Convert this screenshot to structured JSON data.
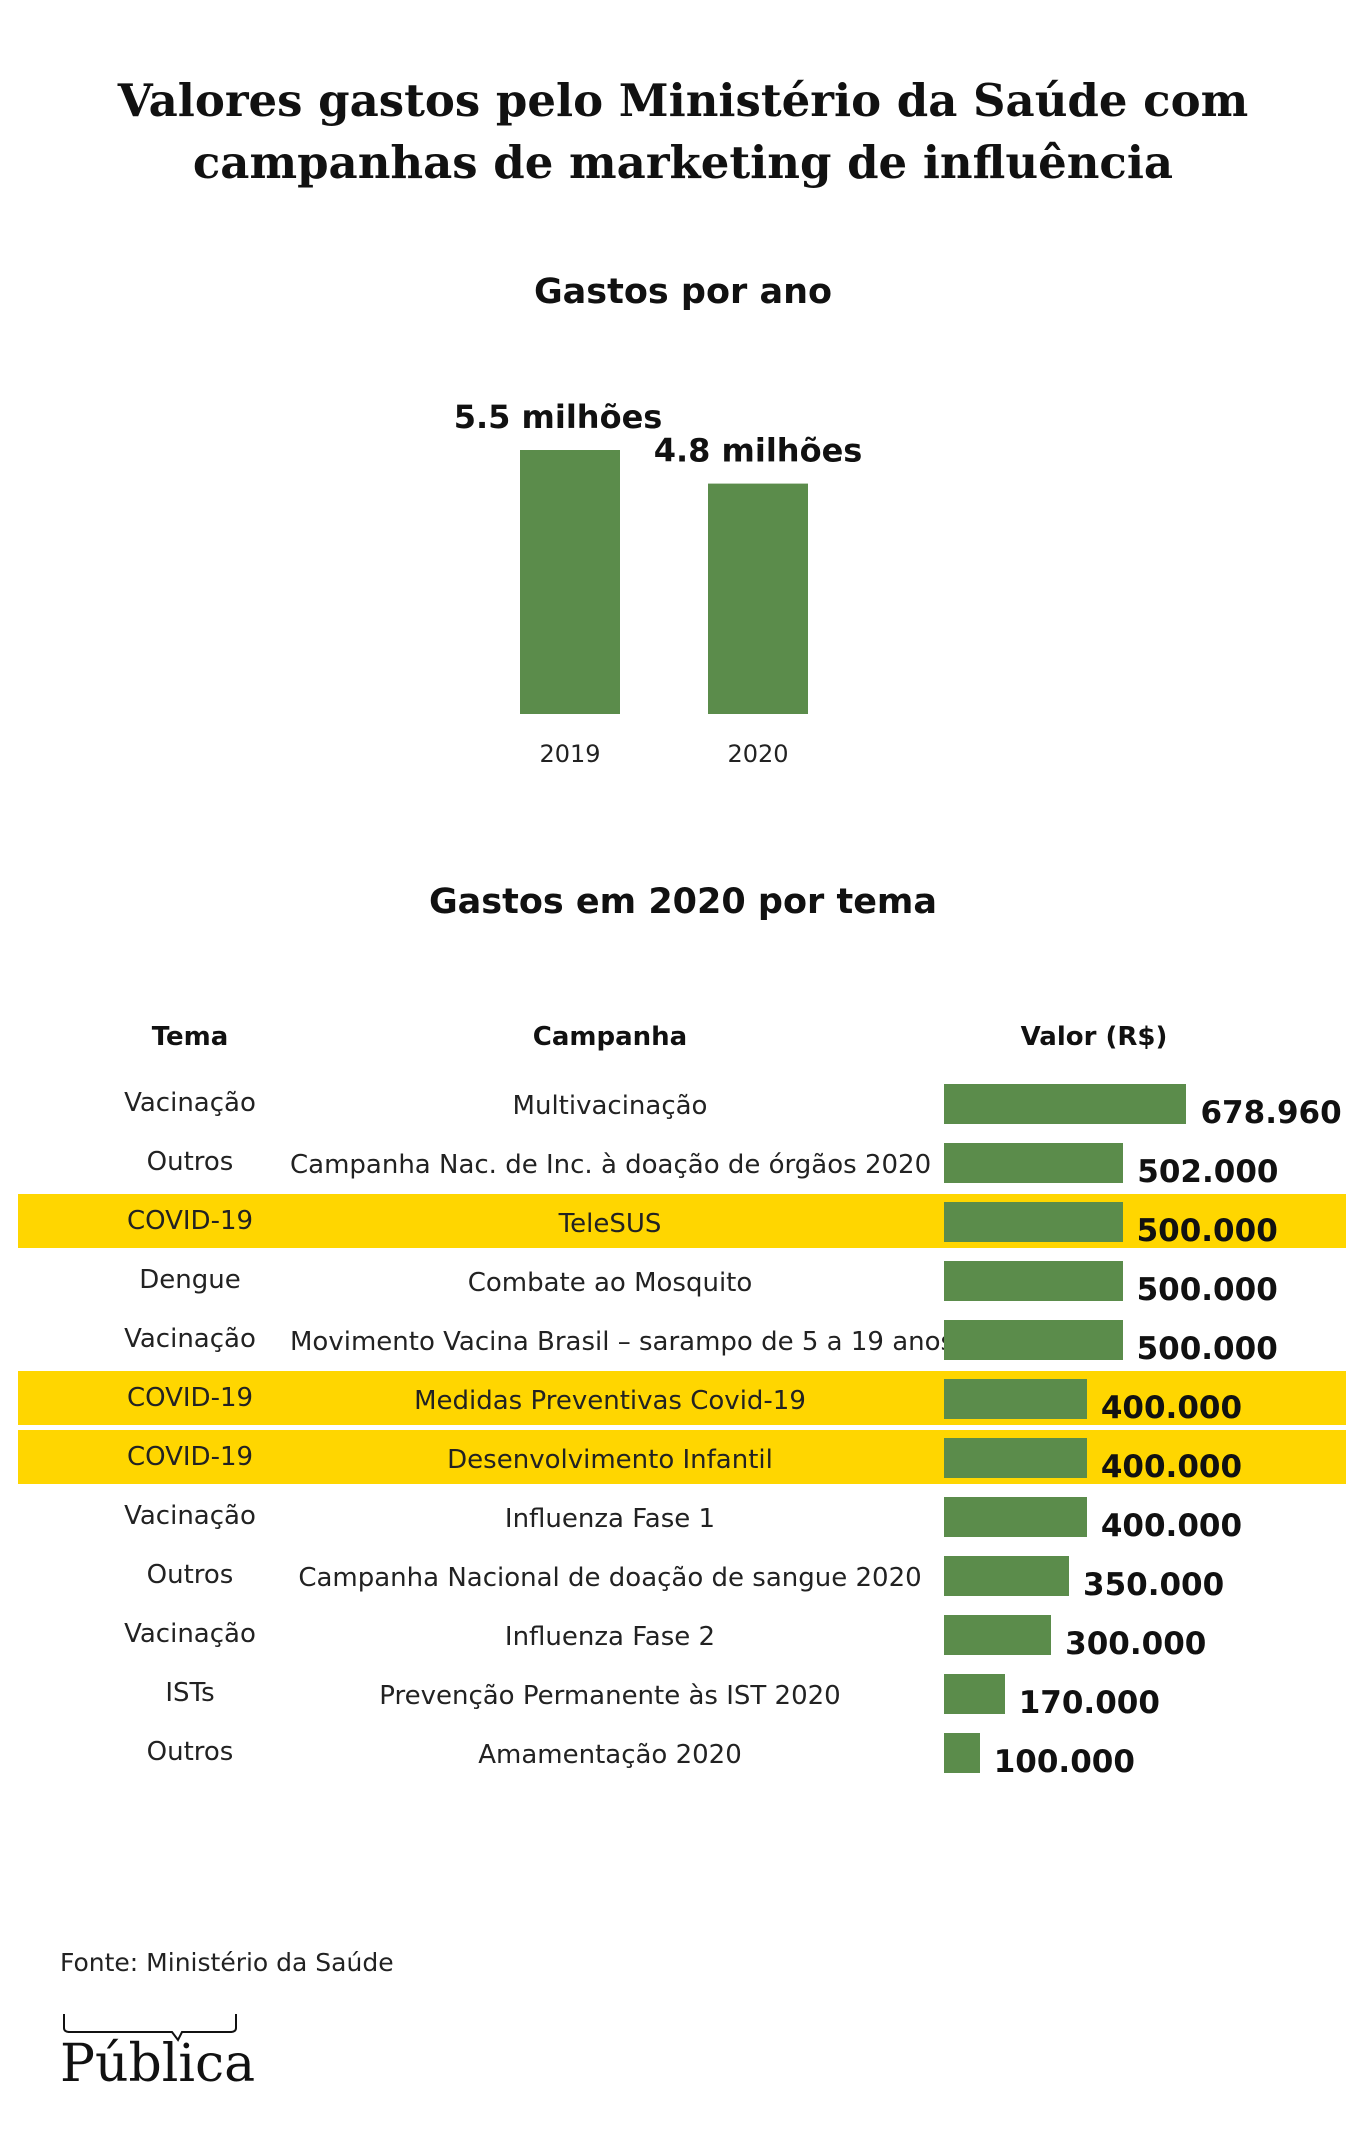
{
  "title": {
    "line1": "Valores gastos pelo Ministério da Saúde com",
    "line2": "campanhas de marketing de influência"
  },
  "colors": {
    "bar": "#5b8c4b",
    "highlight": "#ffd600"
  },
  "annual": {
    "title": "Gastos por ano"
  },
  "by_theme": {
    "title": "Gastos em 2020 por tema",
    "headers": {
      "theme": "Tema",
      "campaign": "Campanha",
      "value": "Valor (R$)"
    }
  },
  "chart_data": [
    {
      "type": "bar",
      "title": "Gastos por ano",
      "categories": [
        "2019",
        "2020"
      ],
      "values": [
        5.5,
        4.8
      ],
      "value_labels": [
        "5.5 milhões",
        "4.8 milhões"
      ]
    },
    {
      "type": "table",
      "title": "Gastos em 2020 por tema",
      "columns": [
        "Tema",
        "Campanha",
        "Valor (R$)"
      ],
      "rows": [
        {
          "theme": "Vacinação",
          "campaign": "Multivacinação",
          "value": 678960,
          "label": "678.960",
          "highlight": false
        },
        {
          "theme": "Outros",
          "campaign": "Campanha Nac. de Inc. à doação de órgãos 2020",
          "value": 502000,
          "label": "502.000",
          "highlight": false
        },
        {
          "theme": "COVID-19",
          "campaign": "TeleSUS",
          "value": 500000,
          "label": "500.000",
          "highlight": true
        },
        {
          "theme": "Dengue",
          "campaign": "Combate ao Mosquito",
          "value": 500000,
          "label": "500.000",
          "highlight": false
        },
        {
          "theme": "Vacinação",
          "campaign": "Movimento Vacina Brasil – sarampo de 5 a 19 anos",
          "value": 500000,
          "label": "500.000",
          "highlight": false
        },
        {
          "theme": "COVID-19",
          "campaign": "Medidas Preventivas Covid-19",
          "value": 400000,
          "label": "400.000",
          "highlight": true
        },
        {
          "theme": "COVID-19",
          "campaign": "Desenvolvimento Infantil",
          "value": 400000,
          "label": "400.000",
          "highlight": true
        },
        {
          "theme": "Vacinação",
          "campaign": "Influenza Fase 1",
          "value": 400000,
          "label": "400.000",
          "highlight": false
        },
        {
          "theme": "Outros",
          "campaign": "Campanha Nacional de doação de sangue 2020",
          "value": 350000,
          "label": "350.000",
          "highlight": false
        },
        {
          "theme": "Vacinação",
          "campaign": "Influenza Fase 2",
          "value": 300000,
          "label": "300.000",
          "highlight": false
        },
        {
          "theme": "ISTs",
          "campaign": "Prevenção Permanente às IST 2020",
          "value": 170000,
          "label": "170.000",
          "highlight": false
        },
        {
          "theme": "Outros",
          "campaign": "Amamentação 2020",
          "value": 100000,
          "label": "100.000",
          "highlight": false
        }
      ]
    }
  ],
  "source": "Fonte: Ministério da Saúde",
  "logo": {
    "text": "Pública"
  }
}
